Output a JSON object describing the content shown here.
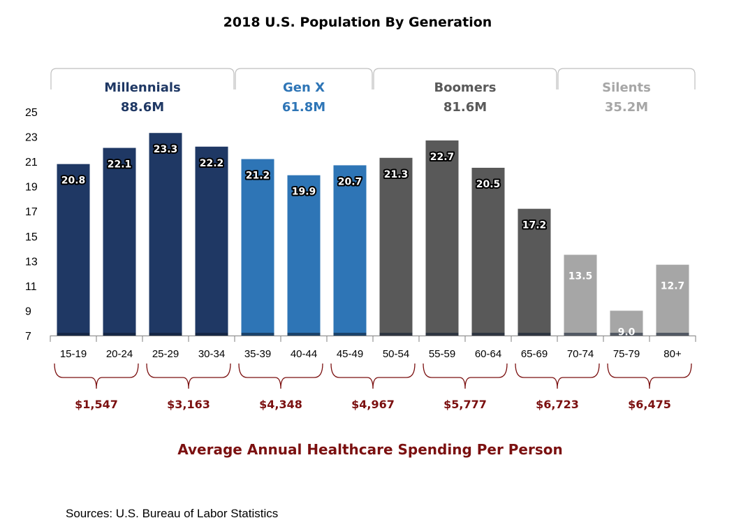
{
  "chart_data": {
    "type": "bar",
    "title": "2018 U.S. Population By Generation",
    "ylim": [
      7,
      25
    ],
    "yticks": [
      7,
      9,
      11,
      13,
      15,
      17,
      19,
      21,
      23,
      25
    ],
    "categories": [
      "15-19",
      "20-24",
      "25-29",
      "30-34",
      "35-39",
      "40-44",
      "45-49",
      "50-54",
      "55-59",
      "60-64",
      "65-69",
      "70-74",
      "75-79",
      "80+"
    ],
    "values": [
      20.8,
      22.1,
      23.3,
      22.2,
      21.2,
      19.9,
      20.7,
      21.3,
      22.7,
      20.5,
      17.2,
      13.5,
      9.0,
      12.7
    ],
    "value_labels": [
      "20.8",
      "22.1",
      "23.3",
      "22.2",
      "21.2",
      "19.9",
      "20.7",
      "21.3",
      "22.7",
      "20.5",
      "17.2",
      "13.5",
      "9.0",
      "12.7"
    ],
    "bar_generation": [
      0,
      0,
      0,
      0,
      1,
      1,
      1,
      2,
      2,
      2,
      2,
      3,
      3,
      3
    ],
    "generations": [
      {
        "name": "Millennials",
        "population": "88.6M",
        "color": "#1f3864",
        "text_color": "#1f3864",
        "first_bar": 0,
        "last_bar": 3
      },
      {
        "name": "Gen X",
        "population": "61.8M",
        "color": "#2e75b6",
        "text_color": "#2e75b6",
        "first_bar": 4,
        "last_bar": 6
      },
      {
        "name": "Boomers",
        "population": "81.6M",
        "color": "#595959",
        "text_color": "#595959",
        "first_bar": 7,
        "last_bar": 10
      },
      {
        "name": "Silents",
        "population": "35.2M",
        "color": "#a6a6a6",
        "text_color": "#a6a6a6",
        "first_bar": 11,
        "last_bar": 13
      }
    ],
    "spending": [
      {
        "label": "$1,547",
        "first_bar": 0,
        "last_bar": 1
      },
      {
        "label": "$3,163",
        "first_bar": 2,
        "last_bar": 3
      },
      {
        "label": "$4,348",
        "first_bar": 4,
        "last_bar": 5
      },
      {
        "label": "$4,967",
        "first_bar": 6,
        "last_bar": 7
      },
      {
        "label": "$5,777",
        "first_bar": 8,
        "last_bar": 9
      },
      {
        "label": "$6,723",
        "first_bar": 10,
        "last_bar": 11
      },
      {
        "label": "$6,475",
        "first_bar": 12,
        "last_bar": 13
      }
    ],
    "spending_title": "Average Annual Healthcare Spending Per Person",
    "spend_color": "#7b1010",
    "source": "Sources: U.S. Bureau of Labor Statistics"
  }
}
